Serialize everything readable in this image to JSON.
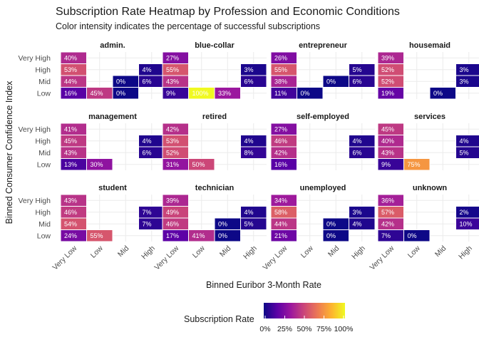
{
  "chart_data": {
    "type": "heatmap",
    "title": "Subscription Rate Heatmap by Profession and Economic Conditions",
    "subtitle": "Color intensity indicates the percentage of successful subscriptions",
    "xlabel": "Binned Euribor 3-Month Rate",
    "ylabel": "Binned Consumer Confidence Index",
    "x_categories": [
      "Very Low",
      "Low",
      "Mid",
      "High"
    ],
    "y_categories": [
      "Low",
      "Mid",
      "High",
      "Very High"
    ],
    "legend": {
      "title": "Subscription Rate",
      "ticks": [
        "0%",
        "25%",
        "50%",
        "75%",
        "100%"
      ],
      "range": [
        0,
        100
      ],
      "position": "bottom"
    },
    "colors": {
      "scale": [
        "#0d0887",
        "#5c01a6",
        "#9c179e",
        "#cc4778",
        "#ed7953",
        "#fdb32f",
        "#f0f921"
      ]
    },
    "panels": [
      {
        "name": "admin.",
        "cells": [
          {
            "x": "Very Low",
            "y": "Very High",
            "value": 40,
            "label": "40%"
          },
          {
            "x": "Very Low",
            "y": "High",
            "value": 53,
            "label": "53%"
          },
          {
            "x": "Very Low",
            "y": "Mid",
            "value": 44,
            "label": "44%"
          },
          {
            "x": "Very Low",
            "y": "Low",
            "value": 16,
            "label": "16%"
          },
          {
            "x": "Low",
            "y": "Low",
            "value": 45,
            "label": "45%"
          },
          {
            "x": "Mid",
            "y": "Mid",
            "value": 0,
            "label": "0%"
          },
          {
            "x": "Mid",
            "y": "Low",
            "value": 0,
            "label": "0%"
          },
          {
            "x": "High",
            "y": "High",
            "value": 4,
            "label": "4%"
          },
          {
            "x": "High",
            "y": "Mid",
            "value": 6,
            "label": "6%"
          }
        ]
      },
      {
        "name": "blue-collar",
        "cells": [
          {
            "x": "Very Low",
            "y": "Very High",
            "value": 27,
            "label": "27%"
          },
          {
            "x": "Very Low",
            "y": "High",
            "value": 55,
            "label": "55%"
          },
          {
            "x": "Very Low",
            "y": "Mid",
            "value": 43,
            "label": "43%"
          },
          {
            "x": "Very Low",
            "y": "Low",
            "value": 9,
            "label": "9%"
          },
          {
            "x": "Low",
            "y": "Low",
            "value": 100,
            "label": "100%"
          },
          {
            "x": "Mid",
            "y": "Low",
            "value": 33,
            "label": "33%"
          },
          {
            "x": "High",
            "y": "High",
            "value": 3,
            "label": "3%"
          },
          {
            "x": "High",
            "y": "Mid",
            "value": 6,
            "label": "6%"
          }
        ]
      },
      {
        "name": "entrepreneur",
        "cells": [
          {
            "x": "Very Low",
            "y": "Very High",
            "value": 26,
            "label": "26%"
          },
          {
            "x": "Very Low",
            "y": "High",
            "value": 55,
            "label": "55%"
          },
          {
            "x": "Very Low",
            "y": "Mid",
            "value": 38,
            "label": "38%"
          },
          {
            "x": "Very Low",
            "y": "Low",
            "value": 11,
            "label": "11%"
          },
          {
            "x": "Low",
            "y": "Low",
            "value": 0,
            "label": "0%"
          },
          {
            "x": "Mid",
            "y": "Mid",
            "value": 0,
            "label": "0%"
          },
          {
            "x": "High",
            "y": "High",
            "value": 5,
            "label": "5%"
          },
          {
            "x": "High",
            "y": "Mid",
            "value": 6,
            "label": "6%"
          }
        ]
      },
      {
        "name": "housemaid",
        "cells": [
          {
            "x": "Very Low",
            "y": "Very High",
            "value": 39,
            "label": "39%"
          },
          {
            "x": "Very Low",
            "y": "High",
            "value": 52,
            "label": "52%"
          },
          {
            "x": "Very Low",
            "y": "Mid",
            "value": 52,
            "label": "52%"
          },
          {
            "x": "Very Low",
            "y": "Low",
            "value": 19,
            "label": "19%"
          },
          {
            "x": "Mid",
            "y": "Low",
            "value": 0,
            "label": "0%"
          },
          {
            "x": "High",
            "y": "High",
            "value": 3,
            "label": "3%"
          },
          {
            "x": "High",
            "y": "Mid",
            "value": 3,
            "label": "3%"
          }
        ]
      },
      {
        "name": "management",
        "cells": [
          {
            "x": "Very Low",
            "y": "Very High",
            "value": 41,
            "label": "41%"
          },
          {
            "x": "Very Low",
            "y": "High",
            "value": 45,
            "label": "45%"
          },
          {
            "x": "Very Low",
            "y": "Mid",
            "value": 43,
            "label": "43%"
          },
          {
            "x": "Very Low",
            "y": "Low",
            "value": 13,
            "label": "13%"
          },
          {
            "x": "Low",
            "y": "Low",
            "value": 30,
            "label": "30%"
          },
          {
            "x": "High",
            "y": "High",
            "value": 4,
            "label": "4%"
          },
          {
            "x": "High",
            "y": "Mid",
            "value": 6,
            "label": "6%"
          }
        ]
      },
      {
        "name": "retired",
        "cells": [
          {
            "x": "Very Low",
            "y": "Very High",
            "value": 42,
            "label": "42%"
          },
          {
            "x": "Very Low",
            "y": "High",
            "value": 53,
            "label": "53%"
          },
          {
            "x": "Very Low",
            "y": "Mid",
            "value": 52,
            "label": "52%"
          },
          {
            "x": "Very Low",
            "y": "Low",
            "value": 31,
            "label": "31%"
          },
          {
            "x": "Low",
            "y": "Low",
            "value": 50,
            "label": "50%"
          },
          {
            "x": "High",
            "y": "High",
            "value": 4,
            "label": "4%"
          },
          {
            "x": "High",
            "y": "Mid",
            "value": 8,
            "label": "8%"
          }
        ]
      },
      {
        "name": "self-employed",
        "cells": [
          {
            "x": "Very Low",
            "y": "Very High",
            "value": 27,
            "label": "27%"
          },
          {
            "x": "Very Low",
            "y": "High",
            "value": 46,
            "label": "46%"
          },
          {
            "x": "Very Low",
            "y": "Mid",
            "value": 42,
            "label": "42%"
          },
          {
            "x": "Very Low",
            "y": "Low",
            "value": 16,
            "label": "16%"
          },
          {
            "x": "High",
            "y": "High",
            "value": 4,
            "label": "4%"
          },
          {
            "x": "High",
            "y": "Mid",
            "value": 6,
            "label": "6%"
          }
        ]
      },
      {
        "name": "services",
        "cells": [
          {
            "x": "Very Low",
            "y": "Very High",
            "value": 45,
            "label": "45%"
          },
          {
            "x": "Very Low",
            "y": "High",
            "value": 40,
            "label": "40%"
          },
          {
            "x": "Very Low",
            "y": "Mid",
            "value": 43,
            "label": "43%"
          },
          {
            "x": "Very Low",
            "y": "Low",
            "value": 9,
            "label": "9%"
          },
          {
            "x": "Low",
            "y": "Low",
            "value": 75,
            "label": "75%"
          },
          {
            "x": "High",
            "y": "High",
            "value": 4,
            "label": "4%"
          },
          {
            "x": "High",
            "y": "Mid",
            "value": 5,
            "label": "5%"
          }
        ]
      },
      {
        "name": "student",
        "cells": [
          {
            "x": "Very Low",
            "y": "Very High",
            "value": 43,
            "label": "43%"
          },
          {
            "x": "Very Low",
            "y": "High",
            "value": 46,
            "label": "46%"
          },
          {
            "x": "Very Low",
            "y": "Mid",
            "value": 54,
            "label": "54%"
          },
          {
            "x": "Very Low",
            "y": "Low",
            "value": 24,
            "label": "24%"
          },
          {
            "x": "Low",
            "y": "Low",
            "value": 55,
            "label": "55%"
          },
          {
            "x": "High",
            "y": "High",
            "value": 7,
            "label": "7%"
          },
          {
            "x": "High",
            "y": "Mid",
            "value": 7,
            "label": "7%"
          }
        ]
      },
      {
        "name": "technician",
        "cells": [
          {
            "x": "Very Low",
            "y": "Very High",
            "value": 39,
            "label": "39%"
          },
          {
            "x": "Very Low",
            "y": "High",
            "value": 49,
            "label": "49%"
          },
          {
            "x": "Very Low",
            "y": "Mid",
            "value": 46,
            "label": "46%"
          },
          {
            "x": "Very Low",
            "y": "Low",
            "value": 17,
            "label": "17%"
          },
          {
            "x": "Low",
            "y": "Low",
            "value": 41,
            "label": "41%"
          },
          {
            "x": "Mid",
            "y": "Mid",
            "value": 0,
            "label": "0%"
          },
          {
            "x": "Mid",
            "y": "Low",
            "value": 0,
            "label": "0%"
          },
          {
            "x": "High",
            "y": "High",
            "value": 4,
            "label": "4%"
          },
          {
            "x": "High",
            "y": "Mid",
            "value": 5,
            "label": "5%"
          }
        ]
      },
      {
        "name": "unemployed",
        "cells": [
          {
            "x": "Very Low",
            "y": "Very High",
            "value": 34,
            "label": "34%"
          },
          {
            "x": "Very Low",
            "y": "High",
            "value": 58,
            "label": "58%"
          },
          {
            "x": "Very Low",
            "y": "Mid",
            "value": 44,
            "label": "44%"
          },
          {
            "x": "Very Low",
            "y": "Low",
            "value": 21,
            "label": "21%"
          },
          {
            "x": "Mid",
            "y": "Mid",
            "value": 0,
            "label": "0%"
          },
          {
            "x": "Mid",
            "y": "Low",
            "value": 0,
            "label": "0%"
          },
          {
            "x": "High",
            "y": "High",
            "value": 3,
            "label": "3%"
          },
          {
            "x": "High",
            "y": "Mid",
            "value": 4,
            "label": "4%"
          }
        ]
      },
      {
        "name": "unknown",
        "cells": [
          {
            "x": "Very Low",
            "y": "Very High",
            "value": 36,
            "label": "36%"
          },
          {
            "x": "Very Low",
            "y": "High",
            "value": 57,
            "label": "57%"
          },
          {
            "x": "Very Low",
            "y": "Mid",
            "value": 42,
            "label": "42%"
          },
          {
            "x": "Very Low",
            "y": "Low",
            "value": 7,
            "label": "7%"
          },
          {
            "x": "Low",
            "y": "Low",
            "value": 0,
            "label": "0%"
          },
          {
            "x": "High",
            "y": "High",
            "value": 2,
            "label": "2%"
          },
          {
            "x": "High",
            "y": "Mid",
            "value": 10,
            "label": "10%"
          }
        ]
      }
    ]
  }
}
